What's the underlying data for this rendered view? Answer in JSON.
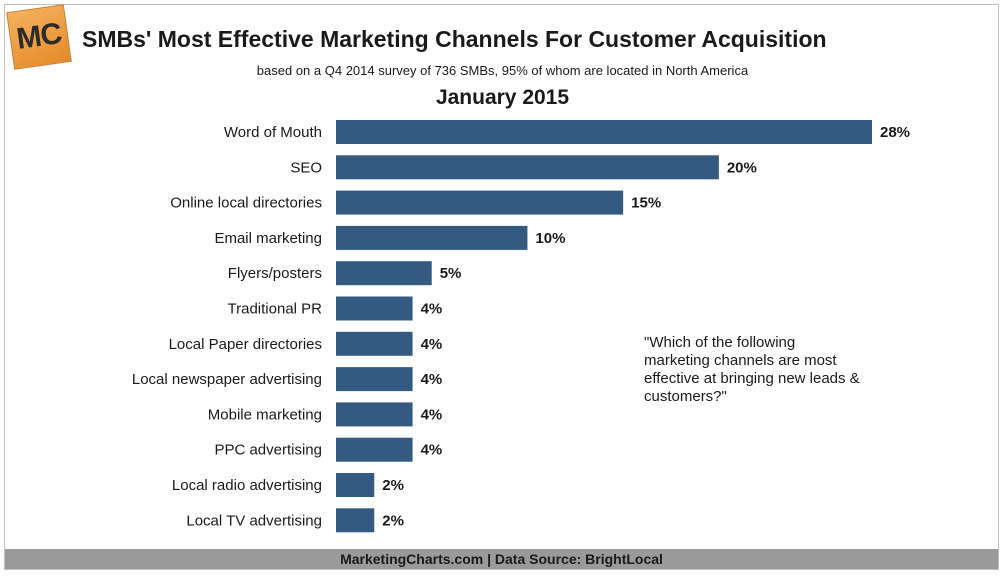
{
  "header": {
    "logo_text": "MC",
    "title": "SMBs' Most Effective Marketing Channels For Customer Acquisition",
    "subtitle": "based on a Q4 2014 survey of 736 SMBs, 95% of whom are located in North America"
  },
  "note": "\"Which of the following marketing channels are most effective at bringing new leads & customers?\"",
  "footer": "MarketingCharts.com | Data Source: BrightLocal",
  "colors": {
    "bar": "#345a82",
    "footer_bg": "#9a9a9a",
    "logo": "#e8963a"
  },
  "chart_data": {
    "type": "bar",
    "orientation": "horizontal",
    "title": "January 2015",
    "xlabel": "",
    "ylabel": "",
    "xlim": [
      0,
      28
    ],
    "grid": false,
    "legend": "none",
    "value_suffix": "%",
    "categories": [
      "Word of Mouth",
      "SEO",
      "Online local directories",
      "Email marketing",
      "Flyers/posters",
      "Traditional PR",
      "Local Paper directories",
      "Local newspaper advertising",
      "Mobile marketing",
      "PPC advertising",
      "Local radio advertising",
      "Local TV advertising"
    ],
    "values": [
      28,
      20,
      15,
      10,
      5,
      4,
      4,
      4,
      4,
      4,
      2,
      2
    ]
  }
}
